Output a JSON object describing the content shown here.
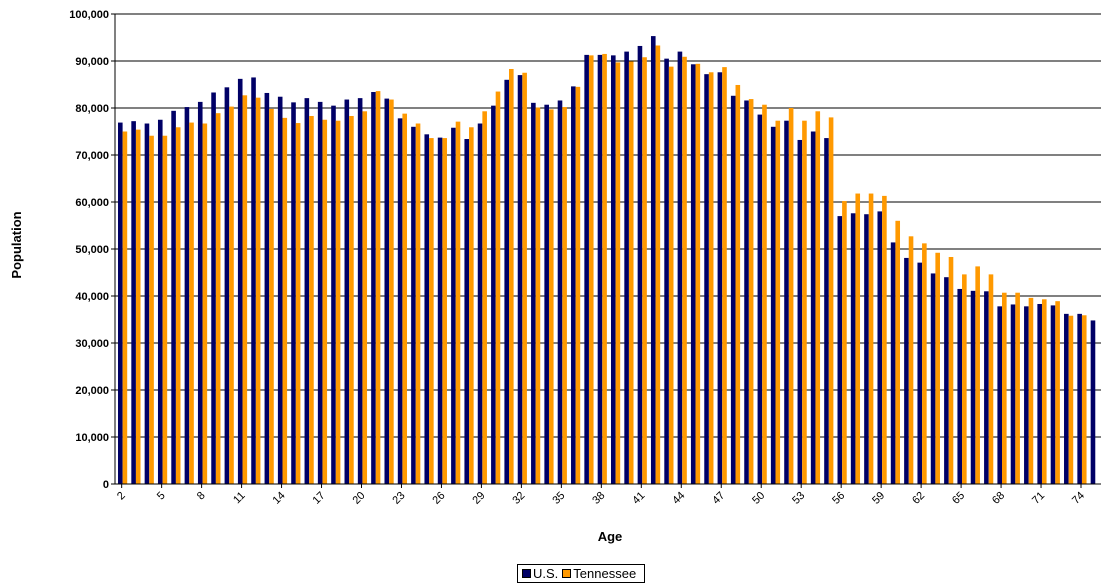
{
  "chart_data": {
    "type": "bar",
    "xlabel": "Age",
    "ylabel": "Population",
    "ylim": [
      0,
      100000
    ],
    "y_ticks": [
      "0",
      "10,000",
      "20,000",
      "30,000",
      "40,000",
      "50,000",
      "60,000",
      "70,000",
      "80,000",
      "90,000",
      "100,000"
    ],
    "grid": "horizontal",
    "legend_position": "bottom",
    "categories": [
      2,
      3,
      4,
      5,
      6,
      7,
      8,
      9,
      10,
      11,
      12,
      13,
      14,
      15,
      16,
      17,
      18,
      19,
      20,
      21,
      22,
      23,
      24,
      25,
      26,
      27,
      28,
      29,
      30,
      31,
      32,
      33,
      34,
      35,
      36,
      37,
      38,
      39,
      40,
      41,
      42,
      43,
      44,
      45,
      46,
      47,
      48,
      49,
      50,
      51,
      52,
      53,
      54,
      55,
      56,
      57,
      58,
      59,
      60,
      61,
      62,
      63,
      64,
      65,
      66,
      67,
      68,
      69,
      70,
      71,
      72,
      73,
      74,
      75
    ],
    "x_tick_labels": [
      "2",
      "5",
      "8",
      "11",
      "14",
      "17",
      "20",
      "23",
      "26",
      "29",
      "32",
      "35",
      "38",
      "41",
      "44",
      "47",
      "50",
      "53",
      "56",
      "59",
      "62",
      "65",
      "68",
      "71",
      "74"
    ],
    "series": [
      {
        "name": "U.S.",
        "color": "#000066",
        "values": [
          76900,
          77200,
          76700,
          77500,
          79400,
          80200,
          81300,
          83300,
          84400,
          86200,
          86500,
          83200,
          82400,
          81200,
          82100,
          81300,
          80500,
          81800,
          82100,
          83400,
          82000,
          77800,
          76000,
          74400,
          73700,
          75800,
          73400,
          76700,
          80500,
          86000,
          87000,
          81100,
          80700,
          81600,
          84600,
          91300,
          91300,
          91200,
          92000,
          93200,
          95300,
          90500,
          92000,
          89300,
          87200,
          87600,
          82600,
          81600,
          78600,
          76000,
          77300,
          73200,
          75000,
          73600,
          57000,
          57600,
          57400,
          58000,
          51400,
          48100,
          47100,
          44800,
          44000,
          41500,
          41100,
          41000,
          37800,
          38200,
          37800,
          38300,
          38000,
          36200,
          36200,
          34800
        ]
      },
      {
        "name": "Tennessee",
        "color": "#FF9900",
        "values": [
          75000,
          75400,
          74100,
          74100,
          75900,
          76900,
          76700,
          78900,
          80300,
          82700,
          82200,
          79800,
          77900,
          76800,
          78300,
          77500,
          77300,
          78300,
          79300,
          83600,
          81800,
          78800,
          76700,
          73600,
          73600,
          77100,
          75900,
          79300,
          83500,
          88300,
          87500,
          80100,
          79700,
          80200,
          84500,
          91200,
          91500,
          89700,
          89900,
          90800,
          93300,
          88800,
          90900,
          89400,
          87600,
          88700,
          84900,
          81900,
          80700,
          77300,
          80000,
          77300,
          79300,
          78000,
          60200,
          61800,
          61800,
          61300,
          56000,
          52700,
          51200,
          49200,
          48300,
          44600,
          46300,
          44600,
          40700,
          40700,
          39600,
          39300,
          38900,
          35800,
          35900,
          0
        ]
      }
    ]
  }
}
